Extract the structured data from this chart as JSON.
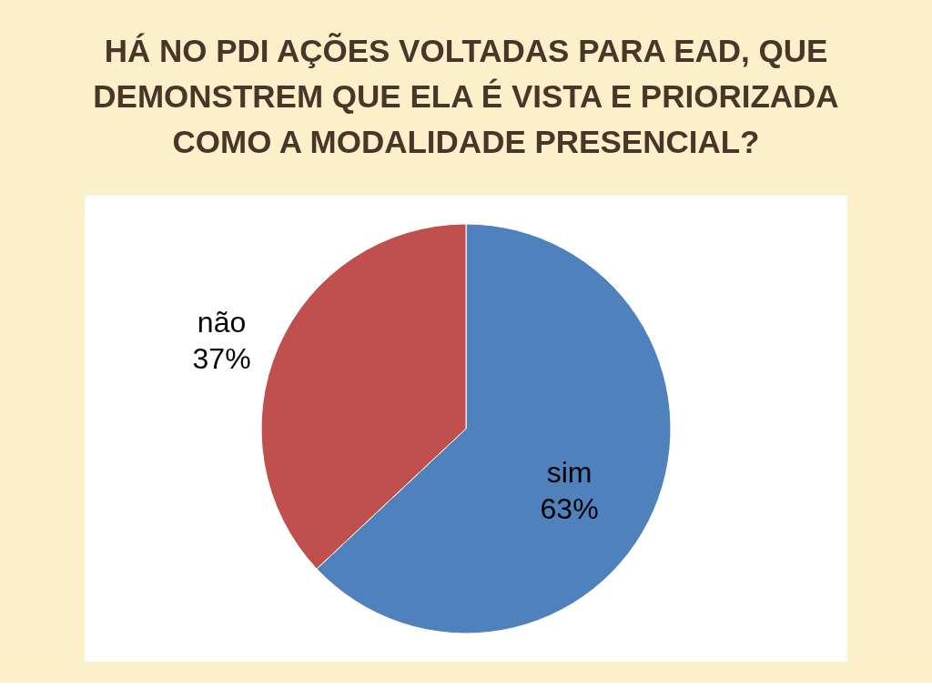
{
  "chart_data": {
    "type": "pie",
    "title": "HÁ NO PDI AÇÕES VOLTADAS PARA EAD, QUE DEMONSTREM QUE ELA É VISTA E PRIORIZADA COMO A MODALIDADE PRESENCIAL?",
    "categories": [
      "sim",
      "não"
    ],
    "values": [
      63,
      37
    ],
    "colors": [
      "#4f81bd",
      "#c0504d"
    ],
    "value_labels": [
      "63%",
      "37%"
    ]
  }
}
